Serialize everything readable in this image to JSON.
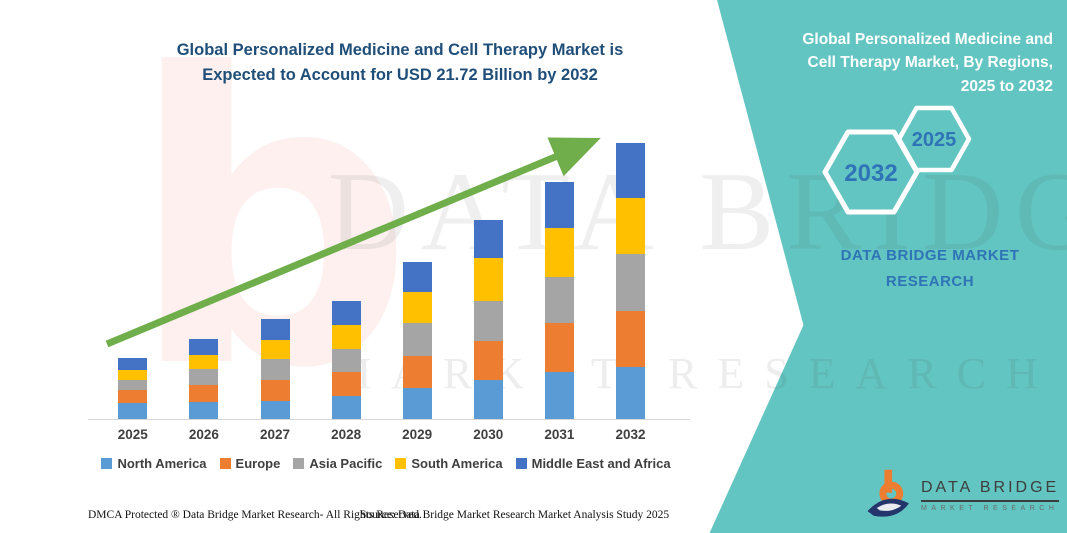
{
  "colors": {
    "accent_teal": "#63c5c1",
    "title_blue": "#1f4e79",
    "hex_number_blue": "#2e74b6",
    "arrow_green": "#6FAE4B",
    "axis_gray": "#d6d6d6",
    "label_gray": "#404040"
  },
  "title": {
    "line1": "Global Personalized Medicine and Cell Therapy Market is",
    "line2": "Expected to Account for USD 21.72 Billion by 2032"
  },
  "side_panel": {
    "title_line1": "Global Personalized Medicine and",
    "title_line2": "Cell Therapy Market, By Regions,",
    "title_line3": "2025 to 2032",
    "hexagon_back_label": "2025",
    "hexagon_front_label": "2032",
    "brand": "DATA BRIDGE MARKET RESEARCH"
  },
  "chart_data": {
    "type": "bar",
    "subtype": "stacked-vertical",
    "title": "Global Personalized Medicine and Cell Therapy Market is Expected to Account for USD 21.72 Billion by 2032",
    "unit": "USD Billion",
    "categories": [
      "2025",
      "2026",
      "2027",
      "2028",
      "2029",
      "2030",
      "2031",
      "2032"
    ],
    "series": [
      {
        "name": "North America",
        "color": "#5B9BD5",
        "values": [
          1.28,
          1.36,
          1.44,
          1.83,
          2.41,
          3.07,
          3.72,
          4.11
        ]
      },
      {
        "name": "Europe",
        "color": "#ED7D31",
        "values": [
          1.0,
          1.31,
          1.63,
          1.89,
          2.57,
          3.07,
          3.8,
          4.38
        ]
      },
      {
        "name": "Asia Pacific",
        "color": "#A5A5A5",
        "values": [
          0.79,
          1.23,
          1.63,
          1.78,
          2.54,
          3.14,
          3.67,
          4.46
        ]
      },
      {
        "name": "South America",
        "color": "#FFC000",
        "values": [
          0.79,
          1.12,
          1.52,
          1.89,
          2.49,
          3.36,
          3.85,
          4.46
        ]
      },
      {
        "name": "Middle East and Africa",
        "color": "#4472C4",
        "values": [
          0.92,
          1.26,
          1.67,
          1.91,
          2.36,
          2.99,
          3.62,
          4.31
        ]
      }
    ],
    "totals": [
      4.78,
      6.28,
      7.89,
      9.3,
      12.37,
      15.63,
      18.66,
      21.72
    ],
    "ylim": [
      0,
      21.72
    ],
    "y_axis_visible": false,
    "grid": false,
    "legend_position": "bottom",
    "annotations": [
      "green upward trend arrow from 2025 toward 2032 bar top"
    ]
  },
  "watermark": {
    "glyph": "b",
    "text1": "DATA BRIDGE",
    "text2": "MARKET RESEARCH"
  },
  "footer": {
    "left": "DMCA Protected ® Data Bridge Market Research-  All Rights Reserved.",
    "source": "Source: Data Bridge Market Research  Market Analysis Study 2025"
  },
  "logo": {
    "name": "DATA BRIDGE",
    "sub": "MARKET RESEARCH"
  }
}
